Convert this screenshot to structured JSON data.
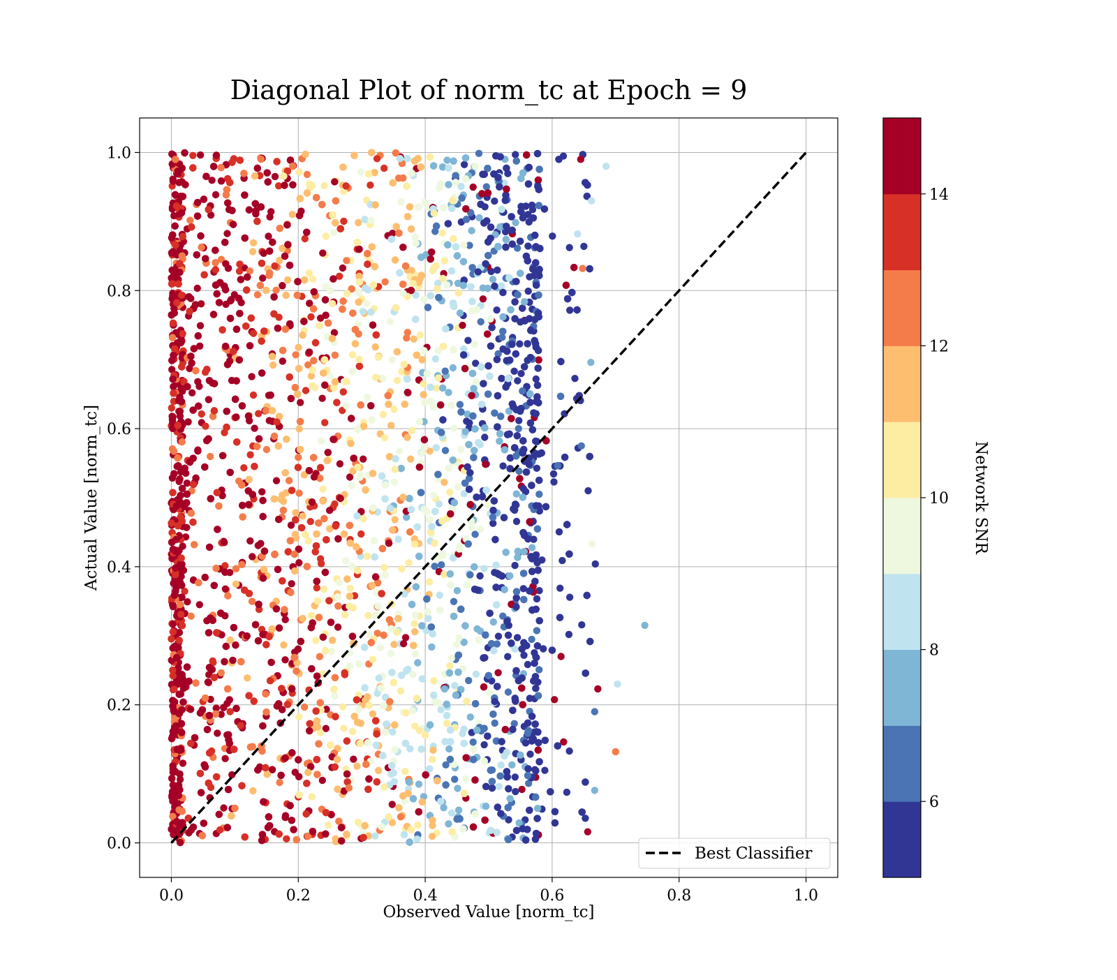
{
  "chart_data": {
    "type": "scatter",
    "title": "Diagonal Plot of norm_tc at Epoch = 9",
    "xlabel": "Observed Value [norm_tc]",
    "ylabel": "Actual Value [norm_tc]",
    "xlim": [
      -0.05,
      1.05
    ],
    "ylim": [
      -0.05,
      1.05
    ],
    "xticks": [
      "0.0",
      "0.2",
      "0.4",
      "0.6",
      "0.8",
      "1.0"
    ],
    "yticks": [
      "0.0",
      "0.2",
      "0.4",
      "0.6",
      "0.8",
      "1.0"
    ],
    "grid": true,
    "legend": {
      "placement": "lower-right",
      "entries": [
        "Best Classifier"
      ]
    },
    "reference_line": {
      "name": "Best Classifier",
      "x": [
        0,
        1
      ],
      "y": [
        0,
        1
      ],
      "style": "dashed",
      "color": "#000000"
    },
    "colorbar": {
      "label": "Network SNR",
      "range": [
        5,
        15
      ],
      "ticks": [
        "6",
        "8",
        "10",
        "12",
        "14"
      ],
      "colors": [
        "#313695",
        "#4a74b4",
        "#7fb5d5",
        "#bfe3ef",
        "#eef8df",
        "#fdeda3",
        "#fdbe70",
        "#f47c4a",
        "#d73027",
        "#a50026"
      ]
    },
    "series": [
      {
        "x_range": [
          0.0,
          0.75
        ],
        "y_range": [
          0.0,
          1.0
        ],
        "color_by": "Network SNR",
        "trend": "high SNR points concentrated near x = 0; lower SNR points extend to x ≈ 0.55–0.75",
        "outliers": [
          {
            "x": 0.645,
            "y": 0.99,
            "snr": 14.5
          },
          {
            "x": 0.685,
            "y": 0.98,
            "snr": 8.4
          },
          {
            "x": 0.746,
            "y": 0.315,
            "snr": 7.6
          },
          {
            "x": 0.703,
            "y": 0.23,
            "snr": 8.5
          },
          {
            "x": 0.672,
            "y": 0.223,
            "snr": 14.5
          },
          {
            "x": 0.668,
            "y": 0.404,
            "snr": 5.5
          },
          {
            "x": 0.7,
            "y": 0.132,
            "snr": 12.6
          },
          {
            "x": 0.656,
            "y": 0.016,
            "snr": 14.5
          },
          {
            "x": 0.661,
            "y": 0.696,
            "snr": 7.5
          },
          {
            "x": 0.64,
            "y": 0.882,
            "snr": 8.0
          },
          {
            "x": 0.65,
            "y": 0.864,
            "snr": 5.5
          },
          {
            "x": 0.648,
            "y": 0.832,
            "snr": 12.5
          },
          {
            "x": 0.662,
            "y": 0.93,
            "snr": 8.8
          },
          {
            "x": 0.667,
            "y": 0.076,
            "snr": 7.4
          },
          {
            "x": 0.667,
            "y": 0.19,
            "snr": 6.5
          },
          {
            "x": 0.663,
            "y": 0.433,
            "snr": 9.5
          },
          {
            "x": 0.646,
            "y": 0.575,
            "snr": 6.5
          },
          {
            "x": 0.614,
            "y": 0.27,
            "snr": 14.5
          }
        ]
      }
    ]
  }
}
